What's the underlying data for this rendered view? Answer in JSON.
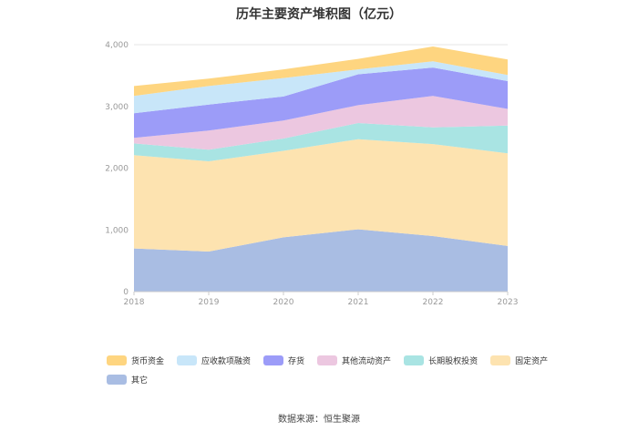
{
  "chart_data": {
    "type": "area",
    "stacked": true,
    "title": "历年主要资产堆积图（亿元）",
    "x": [
      "2018",
      "2019",
      "2020",
      "2021",
      "2022",
      "2023"
    ],
    "ylim": [
      0,
      4000
    ],
    "yticks": [
      0,
      1000,
      2000,
      3000,
      4000
    ],
    "ytick_labels": [
      "0",
      "1,000",
      "2,000",
      "3,000",
      "4,000"
    ],
    "grid": true,
    "legend_position": "bottom",
    "series": [
      {
        "name": "其它",
        "color": "#a9bde3",
        "values": [
          700,
          650,
          880,
          1010,
          900,
          740
        ]
      },
      {
        "name": "固定资产",
        "color": "#fde3b0",
        "values": [
          1510,
          1460,
          1400,
          1460,
          1490,
          1500
        ]
      },
      {
        "name": "长期股权投资",
        "color": "#a9e4e3",
        "values": [
          190,
          190,
          200,
          260,
          270,
          450
        ]
      },
      {
        "name": "其他流动资产",
        "color": "#ecc7e0",
        "values": [
          90,
          310,
          290,
          290,
          510,
          270
        ]
      },
      {
        "name": "存货",
        "color": "#9c9cf8",
        "values": [
          400,
          420,
          390,
          500,
          460,
          450
        ]
      },
      {
        "name": "应收款项融资",
        "color": "#c8e6f9",
        "values": [
          280,
          300,
          300,
          80,
          100,
          100
        ]
      },
      {
        "name": "货币资金",
        "color": "#fed580",
        "values": [
          160,
          120,
          140,
          170,
          240,
          250
        ]
      }
    ],
    "legend_order": [
      "货币资金",
      "应收款项融资",
      "存货",
      "其他流动资产",
      "长期股权投资",
      "固定资产",
      "其它"
    ]
  },
  "source_text": "数据来源：恒生聚源"
}
